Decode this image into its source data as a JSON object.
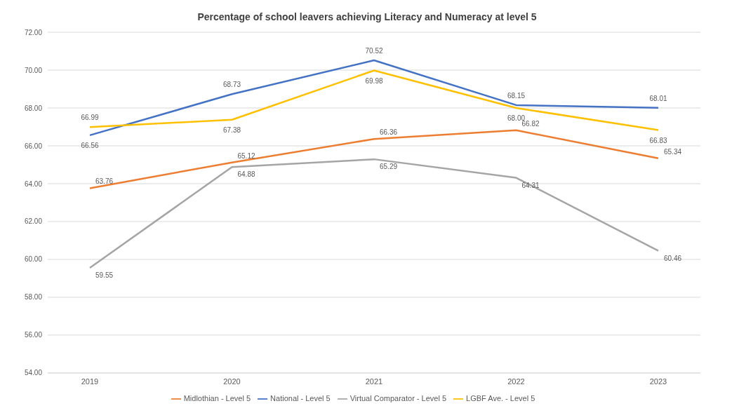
{
  "chart_data": {
    "type": "line",
    "title": "Percentage of school leavers achieving Literacy and Numeracy at level 5",
    "categories": [
      "2019",
      "2020",
      "2021",
      "2022",
      "2023"
    ],
    "series": [
      {
        "name": "Midlothian - Level 5",
        "color": "#ed7d31",
        "values": [
          63.76,
          65.12,
          66.36,
          66.82,
          65.34
        ],
        "value_labels": [
          "63.76",
          "65.12",
          "66.36",
          "66.82",
          "65.34"
        ]
      },
      {
        "name": "National - Level 5",
        "color": "#4472c4",
        "values": [
          66.56,
          68.73,
          70.52,
          68.15,
          68.01
        ],
        "value_labels": [
          "66.56",
          "68.73",
          "70.52",
          "68.15",
          "68.01"
        ]
      },
      {
        "name": "Virtual Comparator - Level 5",
        "color": "#a5a5a5",
        "values": [
          59.55,
          64.88,
          65.29,
          64.31,
          60.46
        ],
        "value_labels": [
          "59.55",
          "64.88",
          "65.29",
          "64.31",
          "60.46"
        ]
      },
      {
        "name": "LGBF Ave. - Level 5",
        "color": "#ffc000",
        "values": [
          66.99,
          67.38,
          69.98,
          68.0,
          66.83
        ],
        "value_labels": [
          "66.99",
          "67.38",
          "69.98",
          "68.00",
          "66.83"
        ]
      }
    ],
    "ylim": [
      54,
      72
    ],
    "yticks": [
      {
        "value": 54,
        "label": "54.00"
      },
      {
        "value": 56,
        "label": "56.00"
      },
      {
        "value": 58,
        "label": "58.00"
      },
      {
        "value": 60,
        "label": "60.00"
      },
      {
        "value": 62,
        "label": "62.00"
      },
      {
        "value": 64,
        "label": "64.00"
      },
      {
        "value": 66,
        "label": "66.00"
      },
      {
        "value": 68,
        "label": "68.00"
      },
      {
        "value": 70,
        "label": "70.00"
      },
      {
        "value": 72,
        "label": "72.00"
      }
    ],
    "grid": "y",
    "legend": "bottom",
    "marker": "none",
    "line_style": "solid"
  }
}
